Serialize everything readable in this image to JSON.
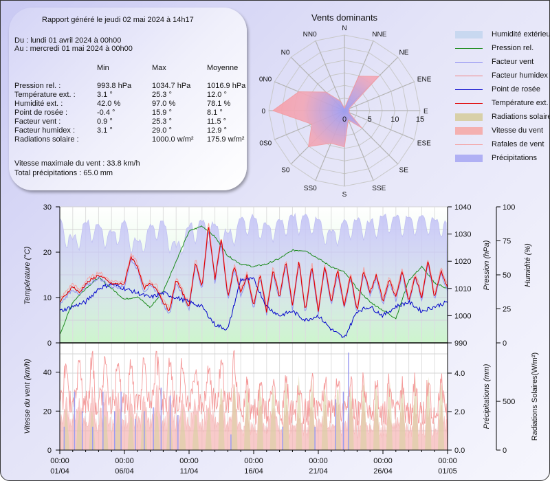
{
  "report": {
    "generated": "Rapport généré le jeudi 02 mai 2024 à 14h17",
    "from": "Du : lundi 01 avril 2024 à 00h00",
    "to": "Au : mercredi 01 mai 2024 à 00h00",
    "columns": [
      "Min",
      "Max",
      "Moyenne"
    ],
    "rows": [
      {
        "label": "Pression rel. :",
        "min": "993.8 hPa",
        "max": "1034.7 hPa",
        "avg": "1016.9 hPa"
      },
      {
        "label": "Température ext. :",
        "min": "3.1 °",
        "max": "25.3 °",
        "avg": "12.0 °"
      },
      {
        "label": "Humidité ext. :",
        "min": "42.0 %",
        "max": "97.0 %",
        "avg": "78.1 %"
      },
      {
        "label": "Point de rosée :",
        "min": "-0.4 °",
        "max": "15.9 °",
        "avg": "8.1 °"
      },
      {
        "label": "Facteur vent :",
        "min": "0.9 °",
        "max": "25.3 °",
        "avg": "11.5 °"
      },
      {
        "label": "Facteur humidex :",
        "min": "3.1 °",
        "max": "29.0 °",
        "avg": "12.9 °"
      },
      {
        "label": "Radiations solaire :",
        "min": "",
        "max": "1000.0 w/m²",
        "avg": "175.9 w/m²"
      }
    ],
    "max_wind": "Vitesse maximale du vent : 33.8 km/h",
    "total_rain": "Total précipitations : 65.0 mm"
  },
  "legend": [
    {
      "label": "Humidité extérieure",
      "kind": "area",
      "color": "#c8d8f0"
    },
    {
      "label": "Pression rel.",
      "kind": "line",
      "color": "#1a8a1a"
    },
    {
      "label": "Facteur vent",
      "kind": "line",
      "color": "#8080f0"
    },
    {
      "label": "Facteur humidex",
      "kind": "line",
      "color": "#f08080"
    },
    {
      "label": "Point de rosée",
      "kind": "line",
      "color": "#0000cc"
    },
    {
      "label": "Température ext.",
      "kind": "line",
      "color": "#e00000"
    },
    {
      "label": "Radiations solaires",
      "kind": "area",
      "color": "#d8d0a8"
    },
    {
      "label": "Vitesse du vent",
      "kind": "area",
      "color": "#f4b0b0"
    },
    {
      "label": "Rafales de vent",
      "kind": "line",
      "color": "#f4a0a0"
    },
    {
      "label": "Précipitations",
      "kind": "area",
      "color": "#b0b0f4"
    }
  ],
  "chart_data": [
    {
      "type": "radar",
      "title": "Vents dominants",
      "directions": [
        "N",
        "NNE",
        "NE",
        "ENE",
        "E",
        "ESE",
        "SE",
        "SSE",
        "S",
        "SS0",
        "S0",
        "0S0",
        "0",
        "0N0",
        "N0",
        "NN0"
      ],
      "values": [
        0.5,
        7.4,
        9.6,
        1.0,
        1.0,
        1.0,
        4.8,
        2.0,
        7.2,
        7.0,
        10.1,
        7.0,
        14.2,
        9.8,
        5.2,
        2.0
      ],
      "radial_ticks": [
        "0",
        "5",
        "10",
        "15"
      ],
      "rmax": 15
    },
    {
      "type": "line",
      "title": "",
      "x_tick_labels": [
        [
          "00:00",
          "01/04"
        ],
        [
          "00:00",
          "06/04"
        ],
        [
          "00:00",
          "11/04"
        ],
        [
          "00:00",
          "16/04"
        ],
        [
          "00:00",
          "21/04"
        ],
        [
          "00:00",
          "26/04"
        ],
        [
          "00:00",
          "01/05"
        ]
      ],
      "xrange_days": [
        0,
        30
      ],
      "left_axis": {
        "label": "Température (°C)",
        "ticks": [
          "0",
          "10",
          "20",
          "30"
        ],
        "range": [
          0,
          30
        ]
      },
      "right_axis_1": {
        "label": "Pression (hPa)",
        "ticks": [
          "990",
          "1000",
          "1010",
          "1020",
          "1030",
          "1040"
        ],
        "range": [
          990,
          1040
        ]
      },
      "right_axis_2": {
        "label": "Humidité (%)",
        "ticks": [
          "0",
          "25",
          "50",
          "75",
          "100"
        ],
        "range": [
          0,
          100
        ]
      },
      "series": [
        {
          "name": "Température ext.",
          "axis": "left",
          "x": [
            0,
            1,
            1.5,
            2,
            3,
            4,
            5,
            5.5,
            6,
            6.5,
            7,
            7.5,
            8,
            8.5,
            9,
            9.5,
            10,
            10.5,
            11,
            11.5,
            12,
            12.5,
            13,
            13.5,
            14,
            14.5,
            15,
            15.5,
            16,
            16.5,
            17,
            17.5,
            18,
            18.5,
            19,
            19.5,
            20,
            20.5,
            21,
            21.5,
            22,
            22.5,
            23,
            23.5,
            24,
            24.5,
            25,
            25.5,
            26,
            26.5,
            27,
            27.5,
            28,
            28.5,
            29,
            29.5,
            30
          ],
          "values": [
            9,
            12.5,
            11,
            13,
            15,
            13,
            13,
            19,
            17,
            12,
            13,
            12,
            9,
            7,
            14,
            11,
            8,
            18,
            12,
            26,
            14,
            23,
            10,
            17,
            11,
            15,
            8,
            15,
            7,
            16,
            10,
            18,
            8,
            18,
            7,
            17,
            7,
            17,
            9,
            16,
            8,
            15,
            7,
            16,
            11,
            15,
            9,
            14,
            10,
            16,
            9,
            15,
            10,
            18,
            10,
            16,
            12
          ]
        },
        {
          "name": "Point de rosée",
          "axis": "left",
          "x": [
            0,
            1,
            2,
            3,
            4,
            5,
            6,
            7,
            8,
            9,
            10,
            11,
            12,
            13,
            14,
            15,
            16,
            17,
            18,
            19,
            20,
            21,
            22,
            23,
            24,
            25,
            26,
            27,
            28,
            29,
            30
          ],
          "values": [
            7,
            8,
            9,
            12,
            13,
            12,
            11,
            10,
            11,
            10,
            9,
            8,
            4,
            3,
            14,
            14,
            8,
            6,
            7,
            5,
            6,
            3,
            1,
            7,
            8,
            6,
            8,
            9,
            7,
            8,
            9
          ]
        },
        {
          "name": "Pression rel.",
          "axis": "right1",
          "x": [
            0,
            1,
            2,
            3,
            4,
            5,
            6,
            7,
            8,
            9,
            10,
            11,
            12,
            13,
            14,
            15,
            16,
            17,
            18,
            19,
            20,
            21,
            22,
            23,
            24,
            25,
            26,
            27,
            28,
            29,
            30
          ],
          "values": [
            993,
            1005,
            1010,
            1014,
            1010,
            1006,
            1007,
            1003,
            1009,
            1020,
            1031,
            1033,
            1029,
            1022,
            1019,
            1018,
            1019,
            1021,
            1024,
            1024,
            1021,
            1018,
            1016,
            1010,
            1005,
            1002,
            999,
            1013,
            1018,
            1012,
            1010
          ]
        },
        {
          "name": "Humidité extérieure",
          "axis": "right2",
          "x": [
            0,
            1,
            2,
            3,
            4,
            5,
            6,
            7,
            8,
            9,
            10,
            11,
            12,
            13,
            14,
            15,
            16,
            17,
            18,
            19,
            20,
            21,
            22,
            23,
            24,
            25,
            26,
            27,
            28,
            29,
            30
          ],
          "values": [
            90,
            75,
            88,
            85,
            80,
            88,
            72,
            85,
            88,
            70,
            85,
            88,
            86,
            80,
            90,
            92,
            85,
            88,
            92,
            92,
            90,
            80,
            88,
            90,
            88,
            92,
            92,
            90,
            92,
            90,
            88
          ]
        }
      ]
    },
    {
      "type": "area",
      "left_axis": {
        "label": "Vitesse du vent (km/h)",
        "ticks": [
          "0",
          "20",
          "40"
        ],
        "range": [
          0,
          55
        ]
      },
      "right_axis_1": {
        "label": "Précipitations (mm)",
        "ticks": [
          "0.0",
          "2.0",
          "4.0"
        ],
        "range": [
          0,
          5.5
        ]
      },
      "right_axis_2": {
        "label": "Radiations Solaires(W/m²)",
        "ticks": [
          "0",
          "500"
        ],
        "range": [
          0,
          1100
        ]
      },
      "series": [
        {
          "name": "Rafales de vent",
          "peak_max_kmh": 54
        },
        {
          "name": "Vitesse du vent",
          "peak_max_kmh": 33.8
        },
        {
          "name": "Radiations solaires",
          "peak_max_wm2": 1000
        },
        {
          "name": "Précipitations",
          "total_mm": 65.0,
          "peak_max_mm": 4.9
        }
      ]
    }
  ]
}
